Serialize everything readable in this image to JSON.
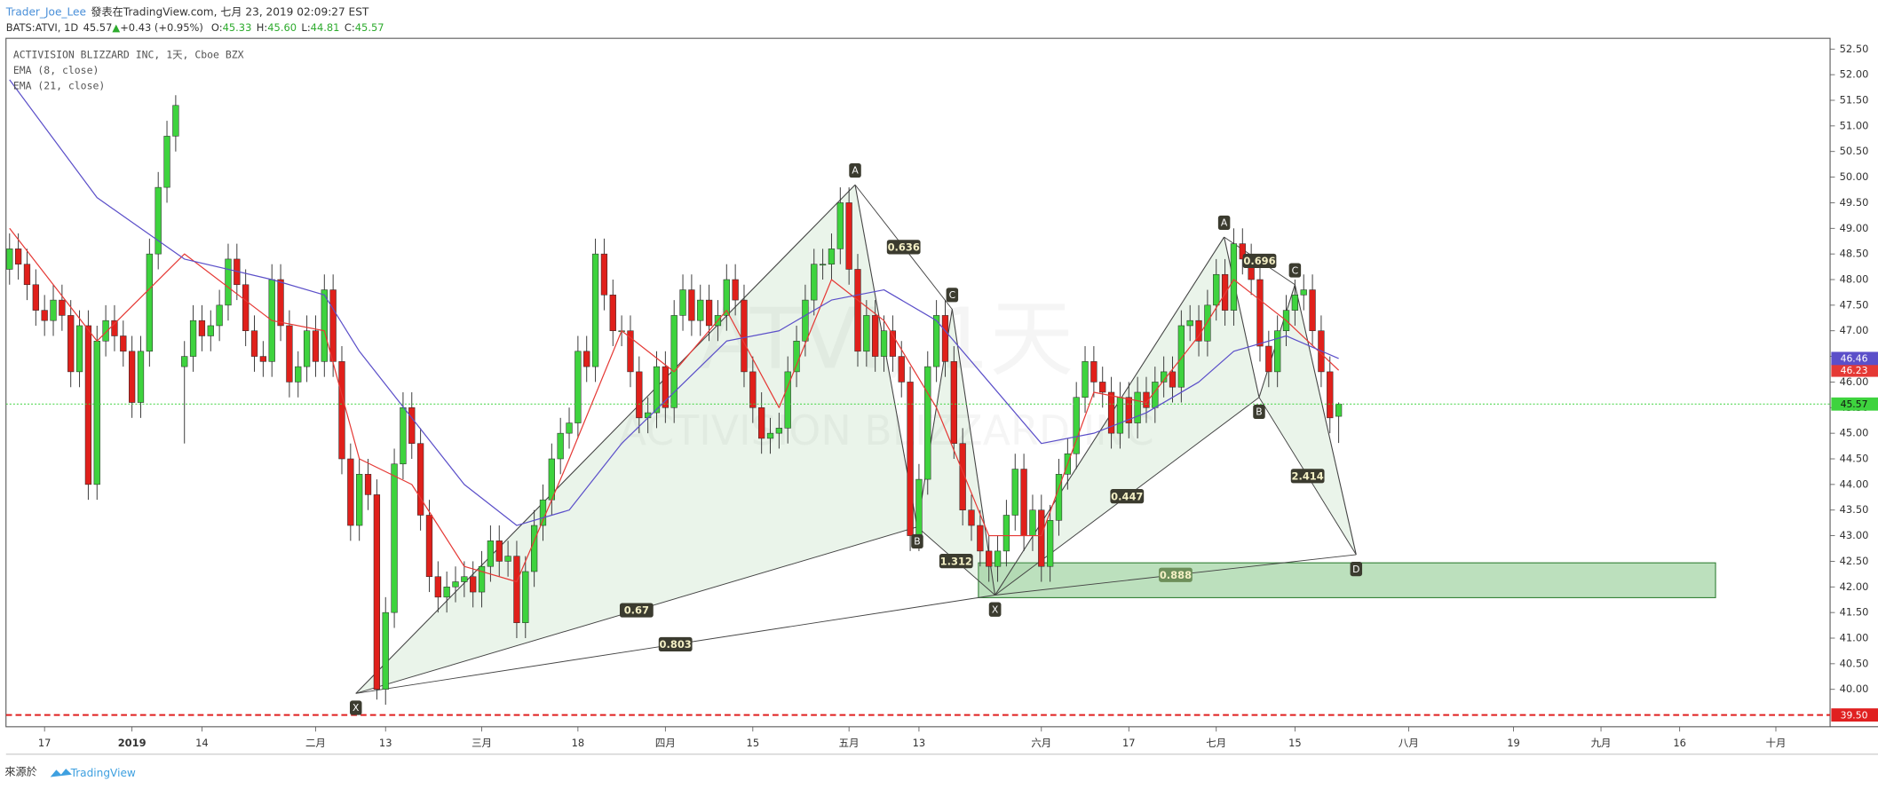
{
  "header": {
    "author": "Trader_Joe_Lee",
    "published": "發表在TradingView.com, 七月 23, 2019 02:09:27 EST",
    "symbol": "BATS:ATVI, 1D",
    "last": "45.57",
    "arrow": "▲",
    "change": "+0.43 (+0.95%)",
    "ohlc": [
      {
        "key": "O:",
        "value": "45.33"
      },
      {
        "key": "H:",
        "value": "45.60"
      },
      {
        "key": "L:",
        "value": "44.81"
      },
      {
        "key": "C:",
        "value": "45.57"
      }
    ]
  },
  "footer": {
    "source": "來源於",
    "brand": "TradingView"
  },
  "chart_data": {
    "type": "candlestick",
    "title": "ACTIVISION BLIZZARD INC, 1天, Cboe BZX",
    "watermark": [
      "ATVI, 1天",
      "ACTIVISION BLIZZARD INC"
    ],
    "xlim": [
      -0.41,
      208.2
    ],
    "ylim": [
      39.27,
      52.71
    ],
    "xticks": [
      {
        "value": 4,
        "label": "17"
      },
      {
        "value": 14,
        "label": "2019"
      },
      {
        "value": 22,
        "label": "14"
      },
      {
        "value": 35,
        "label": "二月"
      },
      {
        "value": 43,
        "label": "13"
      },
      {
        "value": 54,
        "label": "三月"
      },
      {
        "value": 65,
        "label": "18"
      },
      {
        "value": 75,
        "label": "四月"
      },
      {
        "value": 85,
        "label": "15"
      },
      {
        "value": 96,
        "label": "五月"
      },
      {
        "value": 104,
        "label": "13"
      },
      {
        "value": 118,
        "label": "六月"
      },
      {
        "value": 128,
        "label": "17"
      },
      {
        "value": 138,
        "label": "七月"
      },
      {
        "value": 147,
        "label": "15"
      },
      {
        "value": 160,
        "label": "八月"
      },
      {
        "value": 172,
        "label": "19"
      },
      {
        "value": 182,
        "label": "九月"
      },
      {
        "value": 191,
        "label": "16"
      },
      {
        "value": 202,
        "label": "十月"
      }
    ],
    "yticks": [
      {
        "value": 40,
        "label": "40.00"
      },
      {
        "value": 40.5,
        "label": "40.50"
      },
      {
        "value": 41,
        "label": "41.00"
      },
      {
        "value": 41.5,
        "label": "41.50"
      },
      {
        "value": 42,
        "label": "42.00"
      },
      {
        "value": 42.5,
        "label": "42.50"
      },
      {
        "value": 43,
        "label": "43.00"
      },
      {
        "value": 43.5,
        "label": "43.50"
      },
      {
        "value": 44,
        "label": "44.00"
      },
      {
        "value": 44.5,
        "label": "44.50"
      },
      {
        "value": 45,
        "label": "45.00"
      },
      {
        "value": 45.5,
        "label": "45.50"
      },
      {
        "value": 46,
        "label": "46.00"
      },
      {
        "value": 46.5,
        "label": "46.50"
      },
      {
        "value": 47,
        "label": "47.00"
      },
      {
        "value": 47.5,
        "label": "47.50"
      },
      {
        "value": 48,
        "label": "48.00"
      },
      {
        "value": 48.5,
        "label": "48.50"
      },
      {
        "value": 49,
        "label": "49.00"
      },
      {
        "value": 49.5,
        "label": "49.50"
      },
      {
        "value": 50,
        "label": "50.00"
      },
      {
        "value": 50.5,
        "label": "50.50"
      },
      {
        "value": 51,
        "label": "51.00"
      },
      {
        "value": 51.5,
        "label": "51.50"
      },
      {
        "value": 52,
        "label": "52.00"
      },
      {
        "value": 52.5,
        "label": "52.50"
      }
    ],
    "price_line": {
      "value": 39.5,
      "label": "39.50",
      "color": "#e02020"
    },
    "series": [
      {
        "name": "ATVI",
        "type": "candlestick",
        "up_color": "#3ed33e",
        "down_color": "#e0201b",
        "open": [
          48.2,
          48.6,
          48.3,
          47.9,
          47.4,
          47.2,
          47.6,
          47.3,
          46.2,
          47.1,
          44.0,
          46.8,
          47.2,
          46.9,
          46.6,
          45.6,
          46.6,
          48.5,
          49.8,
          50.8,
          46.3,
          46.5,
          47.2,
          46.9,
          47.1,
          47.5,
          48.4,
          47.9,
          47.0,
          46.5,
          46.4,
          48.0,
          47.1,
          46.0,
          46.3,
          47.0,
          46.4,
          47.8,
          46.4,
          44.5,
          43.2,
          44.2,
          43.8,
          40.0,
          41.5,
          44.4,
          45.5,
          44.8,
          43.4,
          42.2,
          41.8,
          42.0,
          42.1,
          42.2,
          41.9,
          42.4,
          42.9,
          42.5,
          42.6,
          41.3,
          42.3,
          43.2,
          43.7,
          44.5,
          45.0,
          45.2,
          46.6,
          46.3,
          48.5,
          47.7,
          47.0,
          47.0,
          46.2,
          45.3,
          45.4,
          46.3,
          45.5,
          47.3,
          47.8,
          47.2,
          47.6,
          47.1,
          47.3,
          48.0,
          47.6,
          46.2,
          45.5,
          44.9,
          45.0,
          45.1,
          46.2,
          46.8,
          47.6,
          48.3,
          48.3,
          48.6,
          49.5,
          48.2,
          46.6,
          47.3,
          46.5,
          47.0,
          46.5,
          46.0,
          43.0,
          44.1,
          46.3,
          47.3,
          46.4,
          44.8,
          43.5,
          43.2,
          42.7,
          42.4,
          42.7,
          43.4,
          44.3,
          43.0,
          43.5,
          42.4,
          43.3,
          44.2,
          44.6,
          45.7,
          46.4,
          46.0,
          45.8,
          45.0,
          45.7,
          45.2,
          45.8,
          45.5,
          46.0,
          46.2,
          45.9,
          47.1,
          47.2,
          46.8,
          47.5,
          48.1,
          47.4,
          48.7,
          48.4,
          48.0,
          46.7,
          46.2,
          47.0,
          47.4,
          47.7,
          47.8,
          47.0,
          46.2,
          45.33
        ],
        "high": [
          48.9,
          48.9,
          48.6,
          48.2,
          47.7,
          47.9,
          47.9,
          47.6,
          47.4,
          47.4,
          47.1,
          47.5,
          47.5,
          47.2,
          46.9,
          46.9,
          48.8,
          50.1,
          51.1,
          51.6,
          46.8,
          47.5,
          47.5,
          47.4,
          47.8,
          48.7,
          48.7,
          48.2,
          47.3,
          46.8,
          48.3,
          48.3,
          47.4,
          46.6,
          47.3,
          47.3,
          48.1,
          48.1,
          46.7,
          44.8,
          44.5,
          44.5,
          44.1,
          41.8,
          44.7,
          45.8,
          45.8,
          45.1,
          43.7,
          42.5,
          42.3,
          42.4,
          42.5,
          42.5,
          42.7,
          43.2,
          43.2,
          42.9,
          42.9,
          42.6,
          43.5,
          44.0,
          44.8,
          45.3,
          45.5,
          46.9,
          46.9,
          48.8,
          48.8,
          48.0,
          47.3,
          47.3,
          46.5,
          45.7,
          46.6,
          46.6,
          47.6,
          48.1,
          48.1,
          47.9,
          47.9,
          47.6,
          48.3,
          48.3,
          47.9,
          46.5,
          45.8,
          45.3,
          45.4,
          46.5,
          47.1,
          47.9,
          48.6,
          48.6,
          48.9,
          49.8,
          49.8,
          48.5,
          47.6,
          47.6,
          47.3,
          47.3,
          46.8,
          46.3,
          44.4,
          46.6,
          47.6,
          47.6,
          46.7,
          45.1,
          43.8,
          43.5,
          43.0,
          43.0,
          43.7,
          44.6,
          44.6,
          43.8,
          43.8,
          43.6,
          44.5,
          44.9,
          46.0,
          46.7,
          46.7,
          46.3,
          46.1,
          46.0,
          46.0,
          46.1,
          46.1,
          46.3,
          46.5,
          46.5,
          47.4,
          47.5,
          47.5,
          47.8,
          48.4,
          48.4,
          49.0,
          49.0,
          48.7,
          48.3,
          47.0,
          47.3,
          47.7,
          48.0,
          48.1,
          48.1,
          47.3,
          46.5,
          45.6
        ],
        "low": [
          47.9,
          48.0,
          47.6,
          47.1,
          46.9,
          46.9,
          47.0,
          45.9,
          45.9,
          43.7,
          43.7,
          46.5,
          46.6,
          46.3,
          45.3,
          45.3,
          46.3,
          48.2,
          49.5,
          50.5,
          44.8,
          46.2,
          46.6,
          46.6,
          46.8,
          47.2,
          47.6,
          46.7,
          46.2,
          46.1,
          46.1,
          46.8,
          45.7,
          45.7,
          46.0,
          46.1,
          46.1,
          46.1,
          44.2,
          42.9,
          42.9,
          43.5,
          39.8,
          39.7,
          41.2,
          44.1,
          44.5,
          43.1,
          41.9,
          41.5,
          41.5,
          41.7,
          41.8,
          41.6,
          41.6,
          42.1,
          42.2,
          42.2,
          41.0,
          41.0,
          42.0,
          42.9,
          43.4,
          44.2,
          44.7,
          44.9,
          46.0,
          46.0,
          47.4,
          46.7,
          46.7,
          45.9,
          45.0,
          45.0,
          45.1,
          45.2,
          45.2,
          47.0,
          46.9,
          46.9,
          46.8,
          46.8,
          47.0,
          47.3,
          45.9,
          45.2,
          44.6,
          44.6,
          44.7,
          44.8,
          45.9,
          46.5,
          47.3,
          48.0,
          48.0,
          48.3,
          47.9,
          46.3,
          46.3,
          46.2,
          46.2,
          46.2,
          45.7,
          42.7,
          42.7,
          43.8,
          46.0,
          46.1,
          44.5,
          43.2,
          42.9,
          42.4,
          42.1,
          42.1,
          42.4,
          43.1,
          42.7,
          42.7,
          42.1,
          42.1,
          43.0,
          43.9,
          44.3,
          45.4,
          45.7,
          45.5,
          44.7,
          44.7,
          44.9,
          44.9,
          45.2,
          45.2,
          45.7,
          45.6,
          45.6,
          46.8,
          46.5,
          46.5,
          47.2,
          47.1,
          47.1,
          48.1,
          47.7,
          46.4,
          45.9,
          45.9,
          46.7,
          47.1,
          47.4,
          46.7,
          45.9,
          45.0,
          44.81
        ],
        "close": [
          48.6,
          48.3,
          47.9,
          47.4,
          47.2,
          47.6,
          47.3,
          46.2,
          47.1,
          44.0,
          46.8,
          47.2,
          46.9,
          46.6,
          45.6,
          46.6,
          48.5,
          49.8,
          50.8,
          51.4,
          46.5,
          47.2,
          46.9,
          47.1,
          47.5,
          48.4,
          47.9,
          47.0,
          46.5,
          46.4,
          48.0,
          47.1,
          46.0,
          46.3,
          47.0,
          46.4,
          47.8,
          46.4,
          44.5,
          43.2,
          44.2,
          43.8,
          40.0,
          41.5,
          44.4,
          45.5,
          44.8,
          43.4,
          42.2,
          41.8,
          42.0,
          42.1,
          42.2,
          41.9,
          42.4,
          42.9,
          42.5,
          42.6,
          41.3,
          42.3,
          43.2,
          43.7,
          44.5,
          45.0,
          45.2,
          46.6,
          46.3,
          48.5,
          47.7,
          47.0,
          47.0,
          46.2,
          45.3,
          45.4,
          46.3,
          45.5,
          47.3,
          47.8,
          47.2,
          47.6,
          47.1,
          47.3,
          48.0,
          47.6,
          46.2,
          45.5,
          44.9,
          45.0,
          45.1,
          46.2,
          46.8,
          47.6,
          48.3,
          48.3,
          48.6,
          49.5,
          48.2,
          46.6,
          47.3,
          46.5,
          47.0,
          46.5,
          46.0,
          43.0,
          44.1,
          46.3,
          47.3,
          46.4,
          44.8,
          43.5,
          43.2,
          42.7,
          42.4,
          42.7,
          43.4,
          44.3,
          43.0,
          43.5,
          42.4,
          43.3,
          44.2,
          44.6,
          45.7,
          46.4,
          46.0,
          45.8,
          45.0,
          45.7,
          45.2,
          45.8,
          45.5,
          46.0,
          46.2,
          45.9,
          47.1,
          47.2,
          46.8,
          47.5,
          48.1,
          47.4,
          48.7,
          48.4,
          48.0,
          46.7,
          46.2,
          47.0,
          47.4,
          47.7,
          47.8,
          47.0,
          46.2,
          45.3,
          45.57
        ]
      },
      {
        "name": "EMA (8, close)",
        "type": "line",
        "color": "#e53935",
        "x": [
          0,
          10,
          20,
          30,
          36,
          40,
          46,
          52,
          58,
          64,
          70,
          76,
          82,
          88,
          94,
          100,
          106,
          112,
          118,
          124,
          130,
          136,
          140,
          146,
          152
        ],
        "values": [
          49.0,
          46.8,
          48.5,
          47.2,
          47.0,
          44.5,
          44.0,
          42.4,
          42.1,
          44.5,
          47.0,
          46.2,
          47.4,
          45.5,
          48.0,
          47.2,
          45.5,
          43.0,
          43.0,
          45.8,
          45.6,
          46.9,
          48.0,
          47.2,
          46.23
        ]
      },
      {
        "name": "EMA (21, close)",
        "type": "line",
        "color": "#5b4fc9",
        "x": [
          0,
          10,
          20,
          30,
          36,
          40,
          46,
          52,
          58,
          64,
          70,
          76,
          82,
          88,
          94,
          100,
          106,
          112,
          118,
          124,
          130,
          136,
          140,
          146,
          152
        ],
        "values": [
          51.9,
          49.6,
          48.4,
          48.0,
          47.7,
          46.6,
          45.3,
          44.0,
          43.2,
          43.5,
          44.8,
          45.8,
          46.8,
          47.0,
          47.6,
          47.8,
          47.2,
          46.0,
          44.8,
          45.0,
          45.4,
          46.0,
          46.6,
          46.9,
          46.46
        ]
      }
    ],
    "patterns": [
      {
        "points": [
          {
            "label": "X",
            "x": 39.6,
            "y": 39.92
          },
          {
            "label": "A",
            "x": 96.7,
            "y": 49.85
          },
          {
            "label": "B",
            "x": 103.8,
            "y": 43.17
          },
          {
            "label": "C",
            "x": 107.8,
            "y": 47.42
          },
          {
            "label": "D",
            "x": 112.7,
            "y": 41.84
          }
        ],
        "ratios": {
          "XB": 0.67,
          "AC": 0.636,
          "BD": 1.312,
          "XD": 0.803
        }
      },
      {
        "points": [
          {
            "label": "X",
            "x": 112.7,
            "y": 41.84
          },
          {
            "label": "A",
            "x": 138.9,
            "y": 48.83
          },
          {
            "label": "B",
            "x": 142.9,
            "y": 45.7
          },
          {
            "label": "C",
            "x": 147.0,
            "y": 47.9
          },
          {
            "label": "D",
            "x": 154.0,
            "y": 42.63
          }
        ],
        "ratios": {
          "XB": 0.447,
          "AC": 0.696,
          "BD": 2.414,
          "XD": 0.888
        }
      }
    ],
    "zone": {
      "x": [
        110.8,
        195.1
      ],
      "y": [
        41.79,
        42.47
      ],
      "color": "#a5d6a7"
    }
  }
}
